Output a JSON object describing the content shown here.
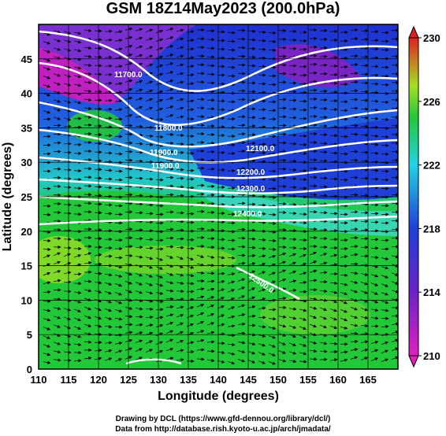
{
  "title": "GSM 18Z14May2023 (200.0hPa)",
  "x_axis": {
    "label": "Longitude (degrees)",
    "ticks": [
      "110",
      "115",
      "120",
      "125",
      "130",
      "135",
      "140",
      "145",
      "150",
      "155",
      "160",
      "165"
    ]
  },
  "y_axis": {
    "label": "Latitude  (degrees)",
    "ticks": [
      "0",
      "5",
      "10",
      "15",
      "20",
      "25",
      "30",
      "35",
      "40",
      "45"
    ]
  },
  "colorbar": {
    "ticks": [
      "230",
      "226",
      "222",
      "218",
      "214",
      "210"
    ]
  },
  "contour_labels": [
    "11700.0",
    "11800.0",
    "11900.0",
    "11900.0",
    "12100.0",
    "12200.0",
    "12300.0",
    "12400.0",
    "12500.0"
  ],
  "credits": {
    "line1": "Drawing by DCL (https://www.gfd-dennou.org/library/dcl/)",
    "line2": "Data from http://database.rish.kyoto-u.ac.jp/arch/jmadata/"
  },
  "colors": {
    "magenta": "#e020c0",
    "purple": "#8a1fbf",
    "blue": "#1f3fd8",
    "cyan": "#22d3e6",
    "green": "#22c837",
    "yellow_green": "#a6e022",
    "orange": "#f08020",
    "red": "#e02020",
    "contour": "#ffffff",
    "arrow": "#000000"
  },
  "chart_data": {
    "type": "heatmap",
    "variable": "200.0hPa",
    "lon_range": [
      110,
      170
    ],
    "lat_range": [
      0,
      50
    ],
    "colorbar_range": [
      210,
      230
    ],
    "contour_levels": [
      11700,
      11800,
      11900,
      12100,
      12200,
      12300,
      12400,
      12500
    ]
  }
}
